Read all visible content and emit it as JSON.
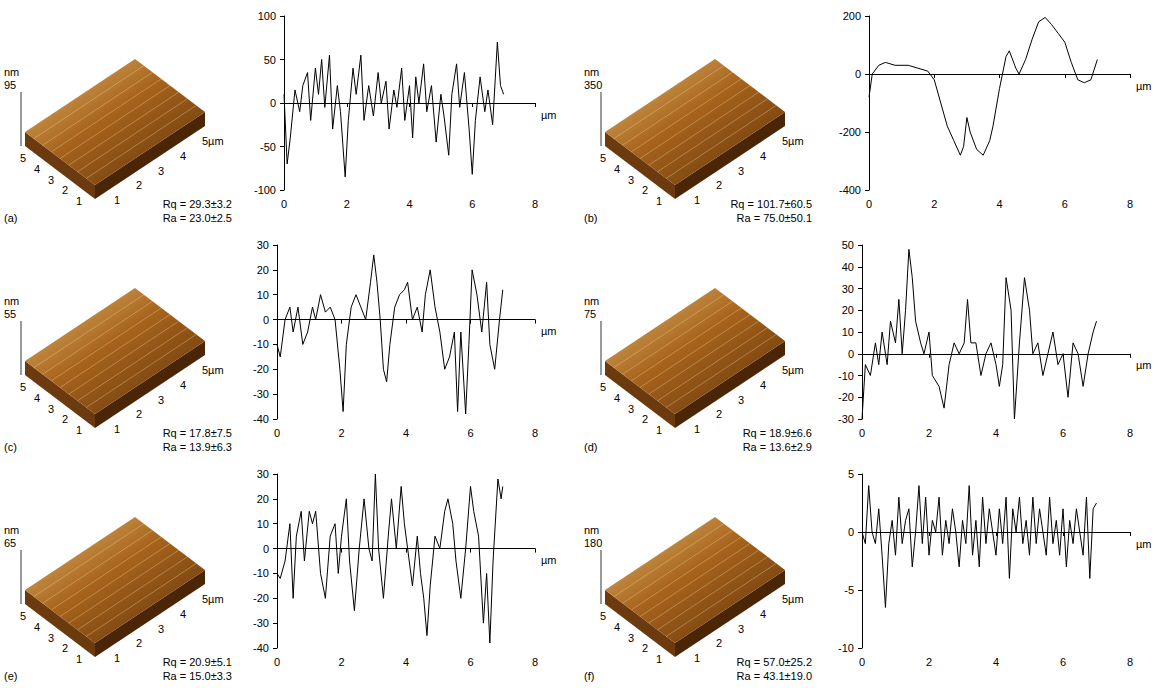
{
  "surfaces": [
    {
      "label": "(a)",
      "z_unit": "nm",
      "z_max": 95,
      "left_ticks": [
        1,
        2,
        3,
        4,
        5
      ],
      "right_ticks": [
        1,
        2,
        3,
        4,
        {
          "value": 5,
          "label": "5µm"
        }
      ],
      "rq": "Rq = 29.3±3.2",
      "ra": "Ra = 23.0±2.5"
    },
    {
      "label": "(b)",
      "z_unit": "nm",
      "z_max": 350,
      "left_ticks": [
        1,
        2,
        3,
        4,
        5
      ],
      "right_ticks": [
        1,
        2,
        3,
        4,
        {
          "value": 5,
          "label": "5µm"
        }
      ],
      "rq": "Rq = 101.7±60.5",
      "ra": "Ra = 75.0±50.1"
    },
    {
      "label": "(c)",
      "z_unit": "nm",
      "z_max": 55,
      "left_ticks": [
        1,
        2,
        3,
        4,
        5
      ],
      "right_ticks": [
        1,
        2,
        3,
        4,
        {
          "value": 5,
          "label": "5µm"
        }
      ],
      "rq": "Rq = 17.8±7.5",
      "ra": "Ra = 13.9±6.3"
    },
    {
      "label": "(d)",
      "z_unit": "nm",
      "z_max": 75,
      "left_ticks": [
        1,
        2,
        3,
        4,
        5
      ],
      "right_ticks": [
        1,
        2,
        3,
        4,
        {
          "value": 5,
          "label": "5µm"
        }
      ],
      "rq": "Rq = 18.9±6.6",
      "ra": "Ra = 13.6±2.9"
    },
    {
      "label": "(e)",
      "z_unit": "nm",
      "z_max": 65,
      "left_ticks": [
        1,
        2,
        3,
        4,
        5
      ],
      "right_ticks": [
        1,
        2,
        3,
        4,
        {
          "value": 5,
          "label": "5µm"
        }
      ],
      "rq": "Rq = 20.9±5.1",
      "ra": "Ra = 15.0±3.3"
    },
    {
      "label": "(f)",
      "z_unit": "nm",
      "z_max": 180,
      "left_ticks": [
        1,
        2,
        3,
        4,
        5
      ],
      "right_ticks": [
        1,
        2,
        3,
        4,
        {
          "value": 5,
          "label": "5µm"
        }
      ],
      "rq": "Rq = 57.0±25.2",
      "ra": "Ra = 43.1±19.0"
    }
  ],
  "chart_data": [
    {
      "type": "line",
      "xlabel": "µm",
      "grid": false,
      "color": "#000000",
      "xlim": [
        0,
        8
      ],
      "xticks": [
        0,
        2,
        4,
        6,
        8
      ],
      "ylim": [
        -100,
        100
      ],
      "yticks": [
        -100,
        -50,
        0,
        50,
        100
      ],
      "x": [
        0,
        0.1,
        0.2,
        0.35,
        0.5,
        0.6,
        0.75,
        0.85,
        1.0,
        1.1,
        1.2,
        1.3,
        1.45,
        1.55,
        1.7,
        1.8,
        1.95,
        2.05,
        2.2,
        2.3,
        2.45,
        2.55,
        2.7,
        2.85,
        3.0,
        3.1,
        3.25,
        3.35,
        3.5,
        3.6,
        3.75,
        3.85,
        4.0,
        4.1,
        4.2,
        4.3,
        4.45,
        4.55,
        4.7,
        4.85,
        5.0,
        5.1,
        5.25,
        5.35,
        5.5,
        5.6,
        5.75,
        5.9,
        6.0,
        6.1,
        6.25,
        6.4,
        6.5,
        6.65,
        6.8,
        6.9,
        7.0
      ],
      "values": [
        10,
        -70,
        -40,
        15,
        -10,
        20,
        35,
        -20,
        40,
        10,
        50,
        -5,
        55,
        -30,
        20,
        -10,
        -85,
        -20,
        40,
        10,
        55,
        -20,
        20,
        -15,
        35,
        0,
        25,
        -30,
        15,
        -5,
        40,
        -20,
        20,
        -40,
        30,
        0,
        45,
        -10,
        20,
        -45,
        10,
        -15,
        -60,
        10,
        45,
        -5,
        35,
        -30,
        -82,
        -20,
        30,
        -10,
        15,
        -25,
        70,
        20,
        10
      ]
    },
    {
      "type": "line",
      "xlabel": "µm",
      "grid": false,
      "color": "#000000",
      "xlim": [
        0,
        8
      ],
      "xticks": [
        0,
        2,
        4,
        6,
        8
      ],
      "ylim": [
        -400,
        200
      ],
      "yticks": [
        -400,
        -200,
        0,
        200
      ],
      "x": [
        0,
        0.1,
        0.3,
        0.5,
        0.8,
        1.2,
        1.5,
        1.8,
        2.0,
        2.2,
        2.4,
        2.6,
        2.8,
        2.9,
        3.0,
        3.1,
        3.3,
        3.5,
        3.7,
        3.8,
        4.0,
        4.2,
        4.3,
        4.5,
        4.6,
        4.8,
        5.0,
        5.2,
        5.4,
        5.6,
        5.8,
        6.0,
        6.2,
        6.4,
        6.6,
        6.8,
        7.0
      ],
      "values": [
        -80,
        0,
        30,
        40,
        30,
        30,
        20,
        10,
        -20,
        -100,
        -180,
        -230,
        -280,
        -250,
        -150,
        -200,
        -260,
        -280,
        -230,
        -180,
        -50,
        60,
        80,
        20,
        0,
        50,
        120,
        180,
        195,
        170,
        140,
        110,
        40,
        -20,
        -30,
        -20,
        50
      ]
    },
    {
      "type": "line",
      "xlabel": "µm",
      "grid": false,
      "color": "#000000",
      "xlim": [
        0,
        8
      ],
      "xticks": [
        0,
        2,
        4,
        6,
        8
      ],
      "ylim": [
        -40,
        30
      ],
      "yticks": [
        -40,
        -30,
        -20,
        -10,
        0,
        10,
        20,
        30
      ],
      "x": [
        0,
        0.1,
        0.25,
        0.4,
        0.5,
        0.65,
        0.8,
        0.95,
        1.1,
        1.2,
        1.35,
        1.5,
        1.65,
        1.8,
        1.95,
        2.05,
        2.15,
        2.3,
        2.45,
        2.6,
        2.75,
        2.9,
        3.0,
        3.1,
        3.2,
        3.3,
        3.4,
        3.5,
        3.65,
        3.8,
        3.95,
        4.05,
        4.2,
        4.35,
        4.5,
        4.6,
        4.75,
        4.9,
        5.05,
        5.2,
        5.35,
        5.5,
        5.6,
        5.7,
        5.85,
        5.95,
        6.05,
        6.2,
        6.35,
        6.5,
        6.6,
        6.75,
        6.9,
        7.0
      ],
      "values": [
        -10,
        -15,
        0,
        5,
        -5,
        5,
        -10,
        -5,
        5,
        0,
        10,
        3,
        5,
        0,
        -20,
        -37,
        -10,
        5,
        10,
        5,
        0,
        15,
        26,
        15,
        0,
        -20,
        -25,
        -10,
        5,
        10,
        12,
        15,
        0,
        5,
        -5,
        10,
        20,
        5,
        -5,
        -20,
        -15,
        -5,
        -37,
        -5,
        -38,
        -10,
        20,
        10,
        -5,
        15,
        -10,
        -20,
        0,
        12
      ]
    },
    {
      "type": "line",
      "xlabel": "µm",
      "grid": false,
      "color": "#000000",
      "xlim": [
        0,
        8
      ],
      "xticks": [
        0,
        2,
        4,
        6,
        8
      ],
      "ylim": [
        -30,
        50
      ],
      "yticks": [
        -30,
        -20,
        -10,
        0,
        10,
        20,
        30,
        40,
        50
      ],
      "x": [
        0,
        0.1,
        0.25,
        0.4,
        0.5,
        0.6,
        0.75,
        0.85,
        1.0,
        1.1,
        1.2,
        1.3,
        1.4,
        1.5,
        1.6,
        1.75,
        1.85,
        2.0,
        2.1,
        2.3,
        2.45,
        2.6,
        2.75,
        2.9,
        3.05,
        3.15,
        3.25,
        3.4,
        3.55,
        3.7,
        3.85,
        4.0,
        4.1,
        4.2,
        4.3,
        4.45,
        4.55,
        4.7,
        4.85,
        5.0,
        5.1,
        5.25,
        5.4,
        5.55,
        5.7,
        5.85,
        6.0,
        6.15,
        6.3,
        6.45,
        6.6,
        6.75,
        6.9,
        7.0
      ],
      "values": [
        -30,
        -5,
        -10,
        5,
        -5,
        10,
        -5,
        15,
        5,
        25,
        0,
        20,
        48,
        35,
        15,
        5,
        0,
        10,
        -10,
        -15,
        -25,
        -5,
        5,
        0,
        5,
        25,
        5,
        5,
        -10,
        0,
        5,
        -5,
        -15,
        -5,
        35,
        20,
        -30,
        5,
        35,
        20,
        0,
        5,
        -10,
        0,
        10,
        -5,
        0,
        -20,
        5,
        0,
        -15,
        0,
        10,
        15
      ]
    },
    {
      "type": "line",
      "xlabel": "µm",
      "grid": false,
      "color": "#000000",
      "xlim": [
        0,
        8
      ],
      "xticks": [
        0,
        2,
        4,
        6,
        8
      ],
      "ylim": [
        -40,
        30
      ],
      "yticks": [
        -40,
        -30,
        -20,
        -10,
        0,
        10,
        20,
        30
      ],
      "x": [
        0,
        0.1,
        0.25,
        0.4,
        0.5,
        0.6,
        0.75,
        0.85,
        1.0,
        1.1,
        1.2,
        1.35,
        1.5,
        1.65,
        1.8,
        1.9,
        2.0,
        2.15,
        2.25,
        2.4,
        2.55,
        2.7,
        2.85,
        2.95,
        3.05,
        3.15,
        3.3,
        3.45,
        3.55,
        3.7,
        3.85,
        3.95,
        4.05,
        4.2,
        4.35,
        4.45,
        4.55,
        4.65,
        4.75,
        4.9,
        5.05,
        5.2,
        5.3,
        5.45,
        5.55,
        5.7,
        5.85,
        6.0,
        6.1,
        6.25,
        6.4,
        6.5,
        6.6,
        6.7,
        6.85,
        6.95,
        7.0
      ],
      "values": [
        -10,
        -12,
        -5,
        10,
        -20,
        5,
        15,
        -5,
        15,
        10,
        15,
        -10,
        -20,
        5,
        10,
        -10,
        5,
        20,
        -5,
        -25,
        0,
        20,
        0,
        -5,
        30,
        0,
        -20,
        5,
        20,
        0,
        25,
        10,
        0,
        -15,
        5,
        -10,
        -20,
        -35,
        -15,
        5,
        0,
        15,
        20,
        10,
        -5,
        -20,
        0,
        25,
        15,
        5,
        -30,
        -10,
        -38,
        -5,
        28,
        20,
        25
      ]
    },
    {
      "type": "line",
      "xlabel": "µm",
      "grid": false,
      "color": "#000000",
      "xlim": [
        0,
        8
      ],
      "xticks": [
        0,
        2,
        4,
        6,
        8
      ],
      "ylim": [
        -10,
        5
      ],
      "yticks": [
        -10,
        -5,
        0,
        5
      ],
      "x": [
        0,
        0.1,
        0.2,
        0.3,
        0.4,
        0.5,
        0.6,
        0.7,
        0.8,
        0.9,
        1.0,
        1.1,
        1.2,
        1.3,
        1.4,
        1.5,
        1.6,
        1.7,
        1.8,
        1.9,
        2.0,
        2.1,
        2.2,
        2.3,
        2.4,
        2.5,
        2.6,
        2.7,
        2.8,
        2.9,
        3.0,
        3.1,
        3.2,
        3.3,
        3.4,
        3.5,
        3.6,
        3.7,
        3.8,
        3.9,
        4.0,
        4.1,
        4.2,
        4.3,
        4.4,
        4.5,
        4.6,
        4.7,
        4.8,
        4.9,
        5.0,
        5.1,
        5.2,
        5.3,
        5.4,
        5.5,
        5.6,
        5.7,
        5.8,
        5.9,
        6.0,
        6.1,
        6.2,
        6.3,
        6.4,
        6.5,
        6.6,
        6.7,
        6.8,
        6.9,
        7.0
      ],
      "values": [
        0,
        -1,
        4,
        0,
        -1,
        2,
        -2,
        -6.5,
        -1,
        1,
        -2,
        3,
        -1,
        1,
        2,
        -3,
        0,
        4,
        -1,
        3,
        -2,
        1,
        0,
        3,
        -2,
        1,
        -1,
        2,
        0,
        -3,
        1,
        -1,
        4,
        -2,
        1,
        -3,
        3,
        -1,
        2,
        0,
        -2,
        2,
        -1,
        3,
        -4,
        2,
        0,
        3,
        -1,
        1,
        -2,
        3,
        -1,
        2,
        0,
        -2,
        3,
        -1,
        1,
        -2,
        2,
        -3,
        1,
        -1,
        2,
        0,
        -2,
        3,
        -4,
        2,
        2.5
      ]
    }
  ]
}
